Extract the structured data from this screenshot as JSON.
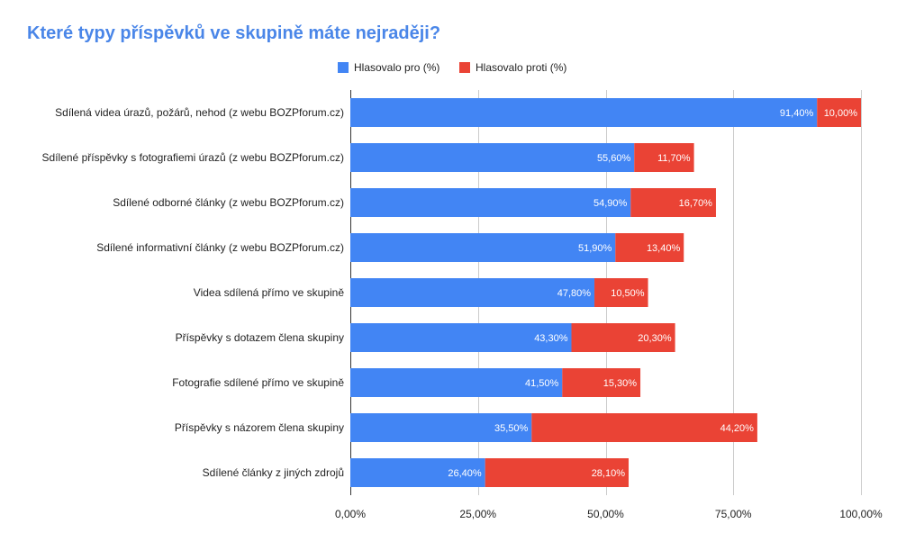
{
  "chart_data": {
    "type": "bar",
    "orientation": "horizontal",
    "stacked": true,
    "title": "Které typy příspěvků ve skupině máte nejraději?",
    "categories": [
      "Sdílená videa úrazů, požárů, nehod (z webu BOZPforum.cz)",
      "Sdílené příspěvky s fotografiemi úrazů (z webu BOZPforum.cz)",
      "Sdílené odborné články (z webu BOZPforum.cz)",
      "Sdílené informativní články (z webu BOZPforum.cz)",
      "Videa sdílená přímo ve skupině",
      "Příspěvky s dotazem člena skupiny",
      "Fotografie sdílené přímo ve skupině",
      "Příspěvky s názorem člena skupiny",
      "Sdílené články z jiných zdrojů"
    ],
    "series": [
      {
        "name": "Hlasovalo pro (%)",
        "color": "#4285f4",
        "values": [
          91.4,
          55.6,
          54.9,
          51.9,
          47.8,
          43.3,
          41.5,
          35.5,
          26.4
        ],
        "labels": [
          "91,40%",
          "55,60%",
          "54,90%",
          "51,90%",
          "47,80%",
          "43,30%",
          "41,50%",
          "35,50%",
          "26,40%"
        ]
      },
      {
        "name": "Hlasovalo proti (%)",
        "color": "#ea4335",
        "values": [
          10.0,
          11.7,
          16.7,
          13.4,
          10.5,
          20.3,
          15.3,
          44.2,
          28.1
        ],
        "labels": [
          "10,00%",
          "11,70%",
          "16,70%",
          "13,40%",
          "10,50%",
          "20,30%",
          "15,30%",
          "44,20%",
          "28,10%"
        ]
      }
    ],
    "xlim": [
      0,
      100
    ],
    "xticks": [
      0,
      25,
      50,
      75,
      100
    ],
    "xtick_labels": [
      "0,00%",
      "25,00%",
      "50,00%",
      "75,00%",
      "100,00%"
    ],
    "grid": true,
    "legend_position": "top"
  }
}
